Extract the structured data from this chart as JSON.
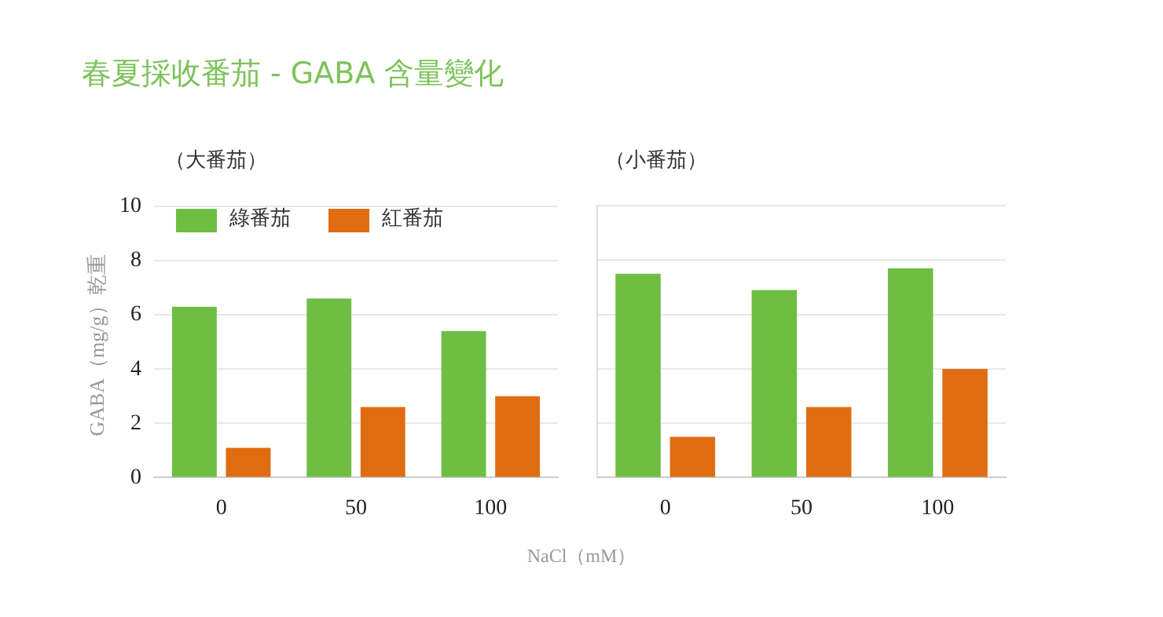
{
  "chart_data": [
    {
      "type": "bar",
      "title": "春夏採收番茄 - GABA 含量變化",
      "subtitle": "（大番茄）",
      "xlabel": "NaCl（mM）",
      "ylabel": "GABA（mg/g）乾重",
      "categories": [
        "0",
        "50",
        "100"
      ],
      "series": [
        {
          "name": "綠番茄",
          "color": "#6fbe44",
          "values": [
            6.3,
            6.6,
            5.4
          ]
        },
        {
          "name": "紅番茄",
          "color": "#e06c12",
          "values": [
            1.1,
            2.6,
            3.0
          ]
        }
      ],
      "ylim": [
        0,
        10
      ],
      "yticks": [
        0,
        2,
        4,
        6,
        8,
        10
      ],
      "grid": "y",
      "legend": "top left"
    },
    {
      "type": "bar",
      "subtitle": "（小番茄）",
      "categories": [
        "0",
        "50",
        "100"
      ],
      "series": [
        {
          "color": "#6fbe44",
          "values": [
            7.5,
            6.9,
            7.7
          ]
        },
        {
          "color": "#e06c12",
          "values": [
            1.5,
            2.6,
            4.0
          ]
        }
      ],
      "ylim": [
        0,
        10
      ],
      "yticks": [
        0,
        2,
        4,
        6,
        8,
        10
      ],
      "grid": "y",
      "tick_labels": "x"
    }
  ]
}
